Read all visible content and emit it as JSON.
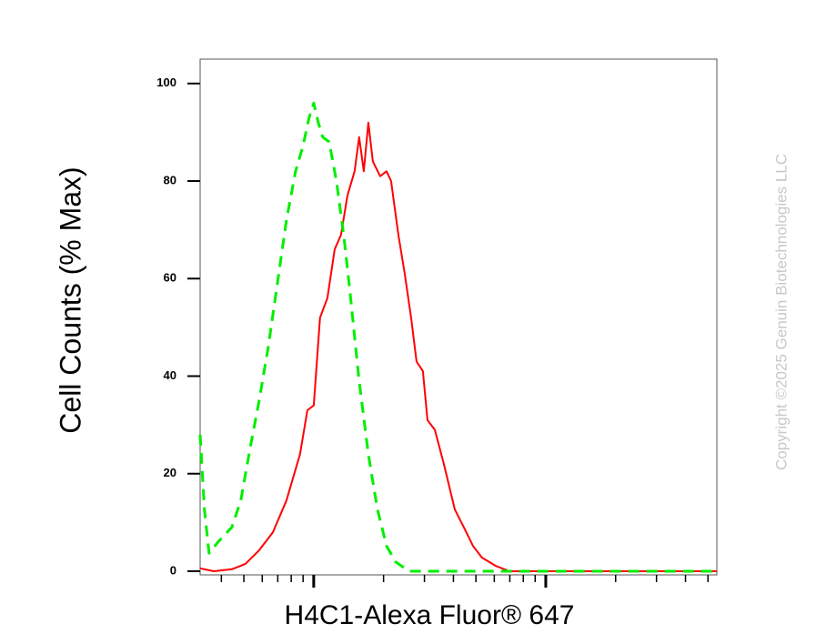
{
  "chart_data": {
    "type": "line",
    "xlabel": "H4C1-Alexa Fluor® 647",
    "ylabel": "Cell Counts (% Max)",
    "watermark": "Copyright ©2025 Genuin Biotechnologies LLC",
    "xscale": "log",
    "xlim": [
      324,
      54600
    ],
    "xticks": [
      400,
      500,
      600,
      700,
      800,
      900,
      1000,
      2000,
      3000,
      4000,
      5000,
      6000,
      7000,
      8000,
      9000,
      10000,
      20000,
      30000,
      40000,
      50000
    ],
    "xmajor": [
      1000,
      10000
    ],
    "ylim": [
      -0.75,
      105
    ],
    "yticks": [
      0,
      20,
      40,
      60,
      80,
      100
    ],
    "series": [
      {
        "color": "#ff0000",
        "dash": false,
        "x": [
          324,
          371,
          444,
          508,
          582,
          667,
          763,
          873,
          939,
          1000,
          1065,
          1145,
          1231,
          1311,
          1397,
          1501,
          1570,
          1643,
          1719,
          1799,
          1933,
          2060,
          2154,
          2316,
          2467,
          2628,
          2774,
          2955,
          3093,
          3325,
          3637,
          4055,
          4436,
          4853,
          5309,
          6083,
          6966,
          10000,
          54600
        ],
        "values": [
          0.6,
          0,
          0.4,
          1.5,
          4.3,
          8,
          14.5,
          24,
          33,
          34,
          52,
          56,
          66,
          69,
          77,
          82,
          89,
          82,
          92,
          84,
          81,
          82,
          80,
          69,
          61,
          52,
          43,
          41,
          31,
          29,
          22,
          12.7,
          9,
          5.2,
          2.8,
          1.1,
          0,
          0,
          0
        ]
      },
      {
        "color": "#00ee00",
        "dash": true,
        "x": [
          324,
          338,
          354,
          387,
          444,
          485,
          531,
          582,
          637,
          697,
          763,
          835,
          897,
          955,
          1000,
          1046,
          1094,
          1166,
          1253,
          1346,
          1435,
          1570,
          1719,
          1881,
          2060,
          2254,
          2581,
          3093,
          4055,
          6966,
          54600
        ],
        "values": [
          28,
          12.7,
          3.7,
          6,
          9,
          14.5,
          25,
          35,
          46,
          59,
          72,
          82,
          87,
          93,
          96,
          92,
          89,
          88,
          80,
          69,
          57,
          39,
          24,
          12.7,
          5.2,
          1.9,
          0,
          0,
          0,
          0,
          0
        ]
      }
    ]
  }
}
